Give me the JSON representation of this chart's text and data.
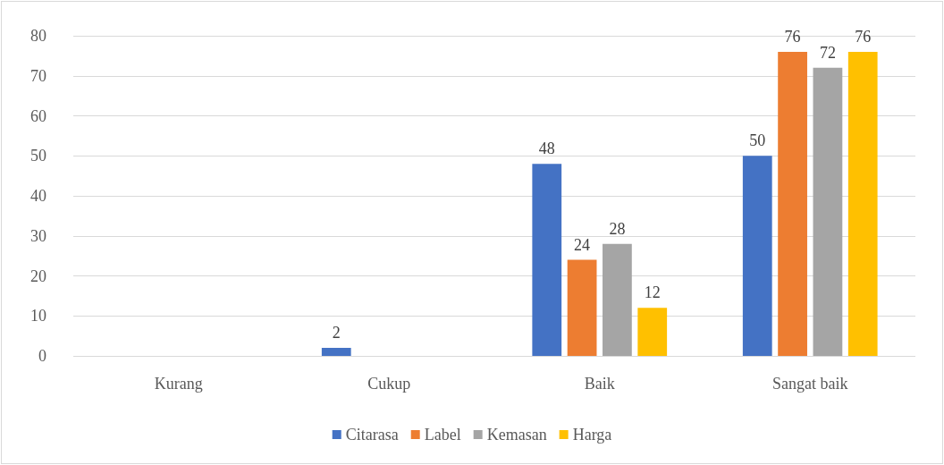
{
  "chart_data": {
    "type": "bar",
    "categories": [
      "Kurang",
      "Cukup",
      "Baik",
      "Sangat baik"
    ],
    "series": [
      {
        "name": "Citarasa",
        "color": "#4472c4",
        "values": [
          0,
          2,
          48,
          50
        ],
        "value_labels": [
          null,
          "2",
          "48",
          "50"
        ]
      },
      {
        "name": "Label",
        "color": "#ed7d31",
        "values": [
          0,
          0,
          24,
          76
        ],
        "value_labels": [
          null,
          null,
          "24",
          "76"
        ]
      },
      {
        "name": "Kemasan",
        "color": "#a5a5a5",
        "values": [
          0,
          0,
          28,
          72
        ],
        "value_labels": [
          null,
          null,
          "28",
          "72"
        ]
      },
      {
        "name": "Harga",
        "color": "#ffc000",
        "values": [
          0,
          0,
          12,
          76
        ],
        "value_labels": [
          null,
          null,
          "12",
          "76"
        ]
      }
    ],
    "ylim": [
      0,
      80
    ],
    "yticks": [
      0,
      10,
      20,
      30,
      40,
      50,
      60,
      70,
      80
    ],
    "grid": "y",
    "legend": "bottom"
  }
}
